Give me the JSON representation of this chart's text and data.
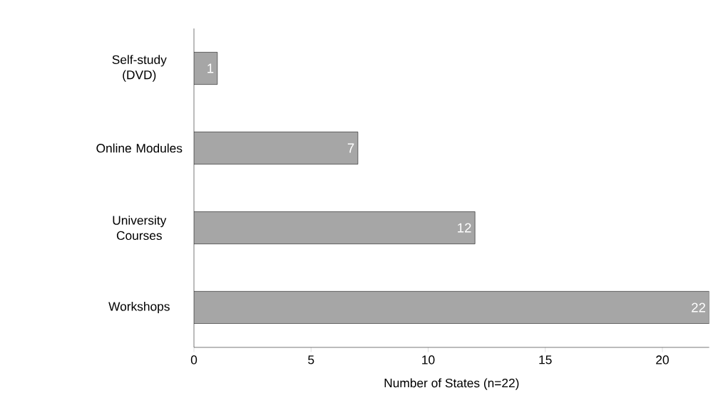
{
  "chart_data": {
    "type": "bar",
    "orientation": "horizontal",
    "xlabel": "Number of States (n=22)",
    "categories": [
      "Self-study (DVD)",
      "Online Modules",
      "University Courses",
      "Workshops"
    ],
    "values": [
      1,
      7,
      12,
      22
    ],
    "color": "#a6a6a6",
    "xlim": [
      0,
      22
    ],
    "xticks": [
      0,
      5,
      10,
      15,
      20
    ],
    "grid": false,
    "data_labels": true
  }
}
